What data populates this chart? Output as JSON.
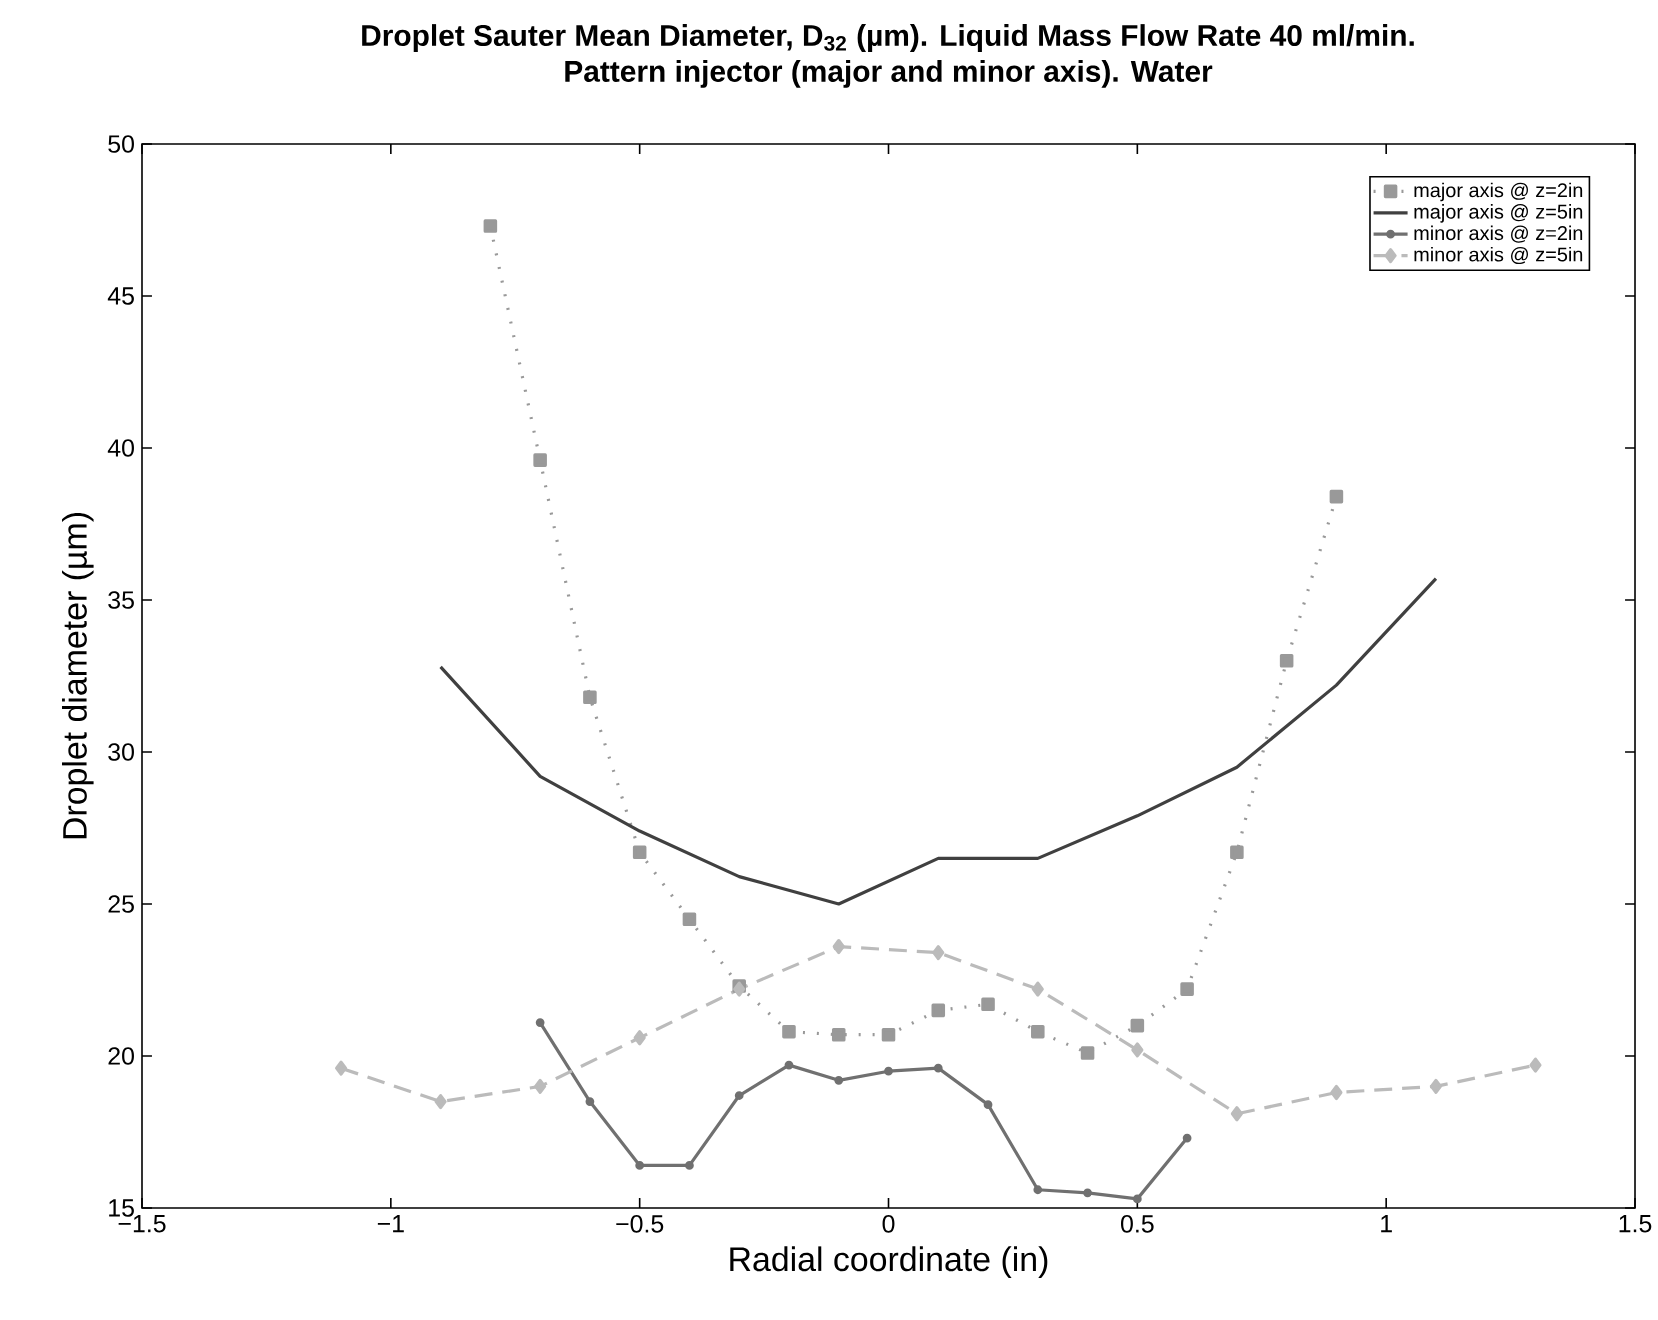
{
  "chart_data": {
    "type": "line",
    "title": "Droplet Sauter Mean Diameter, D$_{32}$ (µm). Liquid Mass Flow Rate 40 ml/min.",
    "subtitle": "Pattern injector (major and minor axis). Water",
    "xlabel": "Radial coordinate (in)",
    "ylabel": "Droplet diameter (µm)",
    "xlim": [
      -1.5,
      1.5
    ],
    "ylim": [
      15,
      50
    ],
    "xticks": [
      {
        "value": -1.5,
        "label": "−1.5"
      },
      {
        "value": -1,
        "label": "−1"
      },
      {
        "value": -0.5,
        "label": "−0.5"
      },
      0,
      0.5,
      1,
      1.5
    ],
    "yticks": [
      15,
      20,
      25,
      30,
      35,
      40,
      45,
      50
    ],
    "grid": false,
    "legend": "top right",
    "series": [
      {
        "name": "major axis @ z=2in",
        "color": "#999999",
        "marker": "square",
        "line_style": "dotted",
        "x": [
          -0.8,
          -0.7,
          -0.6,
          -0.5,
          -0.4,
          -0.3,
          -0.2,
          -0.1,
          0,
          0.1,
          0.2,
          0.3,
          0.4,
          0.5,
          0.6,
          0.7,
          0.8,
          0.9
        ],
        "values": [
          47.3,
          39.6,
          31.8,
          26.7,
          24.5,
          22.3,
          20.8,
          20.7,
          20.7,
          21.5,
          21.7,
          20.8,
          20.1,
          21.0,
          22.2,
          26.7,
          33.0,
          38.4
        ]
      },
      {
        "name": "major axis @ z=5in",
        "color": "#404040",
        "marker": "none",
        "line_style": "solid",
        "x": [
          -0.9,
          -0.7,
          -0.5,
          -0.3,
          -0.1,
          0.1,
          0.3,
          0.5,
          0.7,
          0.9,
          1.1
        ],
        "values": [
          32.8,
          29.2,
          27.4,
          25.9,
          25.0,
          26.5,
          26.5,
          27.9,
          29.5,
          32.2,
          35.7
        ]
      },
      {
        "name": "minor axis @ z=2in",
        "color": "#707070",
        "marker": "circle",
        "line_style": "solid",
        "x": [
          -0.7,
          -0.6,
          -0.5,
          -0.4,
          -0.3,
          -0.2,
          -0.1,
          0,
          0.1,
          0.2,
          0.3,
          0.4,
          0.5,
          0.6
        ],
        "values": [
          21.1,
          18.5,
          16.4,
          16.4,
          18.7,
          19.7,
          19.2,
          19.5,
          19.6,
          18.4,
          15.6,
          15.5,
          15.3,
          17.3
        ]
      },
      {
        "name": "minor axis @ z=5in",
        "color": "#bbbbbb",
        "marker": "diamond",
        "line_style": "dashed",
        "x": [
          -1.1,
          -0.9,
          -0.7,
          -0.5,
          -0.3,
          -0.1,
          0.1,
          0.3,
          0.5,
          0.7,
          0.9,
          1.1,
          1.3
        ],
        "values": [
          19.6,
          18.5,
          19.0,
          20.6,
          22.2,
          23.6,
          23.4,
          22.2,
          20.2,
          18.1,
          18.8,
          19.0,
          19.7
        ]
      }
    ]
  }
}
